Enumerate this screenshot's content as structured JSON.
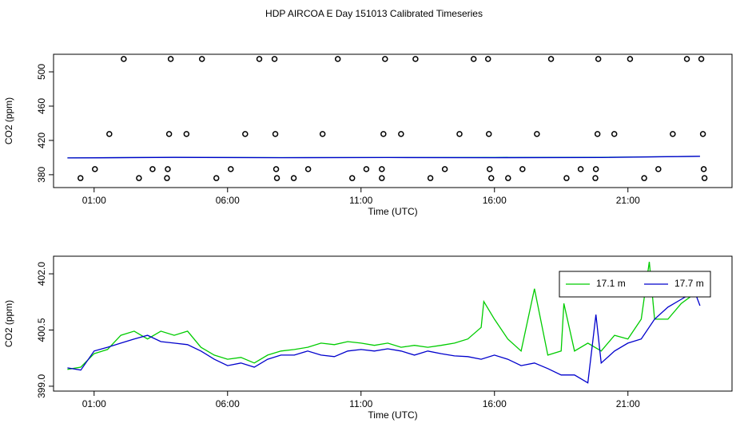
{
  "chart_data": [
    {
      "type": "line",
      "title": "HDP AIRCOA E  Day 151013  Calibrated Timeseries",
      "x_label": "Time (UTC)",
      "y_label": "CO2 (ppm)",
      "xlim": [
        -0.52,
        24.9
      ],
      "ylim": [
        365,
        520.5
      ],
      "xticks": [
        {
          "value": 1,
          "label": "01:00"
        },
        {
          "value": 6,
          "label": "06:00"
        },
        {
          "value": 11,
          "label": "11:00"
        },
        {
          "value": 16,
          "label": "16:00"
        },
        {
          "value": 21,
          "label": "21:00"
        }
      ],
      "yticks": [
        380,
        420,
        460,
        500
      ],
      "series": [
        {
          "type": "scatter",
          "color": "#000000",
          "x": [
            2.11,
            3.87,
            5.04,
            7.19,
            7.76,
            10.13,
            11.9,
            13.04,
            15.22,
            15.76,
            18.12,
            19.89,
            21.08,
            23.21,
            23.75,
            1.57,
            3.81,
            4.46,
            6.66,
            7.79,
            9.56,
            11.84,
            12.5,
            14.69,
            15.79,
            17.59,
            19.86,
            20.49,
            22.68,
            23.81,
            1.03,
            3.19,
            3.76,
            6.12,
            7.82,
            9.02,
            11.2,
            11.78,
            14.14,
            15.82,
            17.05,
            19.23,
            19.8,
            22.14,
            23.84,
            0.49,
            2.68,
            3.73,
            5.58,
            7.85,
            8.48,
            10.67,
            11.78,
            13.6,
            15.88,
            16.51,
            18.7,
            19.78,
            21.61,
            23.87
          ],
          "values": [
            515,
            515,
            515,
            515,
            515,
            515,
            515,
            515,
            515,
            515,
            515,
            515,
            515,
            515,
            515,
            427.5,
            427.5,
            427.5,
            427.5,
            427.5,
            427.5,
            427.5,
            427.5,
            427.5,
            427.5,
            427.5,
            427.5,
            427.5,
            427.5,
            427.5,
            386.5,
            386.5,
            386.5,
            386.5,
            386.5,
            386.5,
            386.5,
            386.5,
            386.5,
            386.5,
            386.5,
            386.5,
            386.5,
            386.5,
            386.5,
            376,
            376,
            376,
            376,
            376,
            376,
            376,
            376,
            376,
            376,
            376,
            376,
            376,
            376,
            376
          ]
        },
        {
          "type": "line",
          "color": "#20a0a0",
          "x": [
            0,
            4,
            8,
            12,
            16,
            20,
            23.7
          ],
          "values": [
            399.6,
            400.4,
            400,
            400.1,
            400.3,
            400.4,
            401.4
          ]
        },
        {
          "type": "line",
          "color": "#0000cc",
          "x": [
            0,
            4,
            8,
            12,
            16,
            20,
            23.7
          ],
          "values": [
            399.5,
            400.2,
            399.8,
            400,
            399.8,
            400,
            401.5
          ]
        }
      ]
    },
    {
      "type": "line",
      "x_label": "Time (UTC)",
      "y_label": "CO2 (ppm)",
      "xlim": [
        -0.52,
        24.9
      ],
      "ylim": [
        398.87,
        402.47
      ],
      "xticks": [
        {
          "value": 1,
          "label": "01:00"
        },
        {
          "value": 6,
          "label": "06:00"
        },
        {
          "value": 11,
          "label": "11:00"
        },
        {
          "value": 16,
          "label": "16:00"
        },
        {
          "value": 21,
          "label": "21:00"
        }
      ],
      "yticks": [
        {
          "value": 399,
          "label": "399.0"
        },
        400.5,
        {
          "value": 402,
          "label": "402.0"
        }
      ],
      "legend": "top-right",
      "series": [
        {
          "name": "17.1 m",
          "color": "#00cc00",
          "type": "line",
          "x": [
            0,
            0.5,
            1,
            1.5,
            2,
            2.5,
            3,
            3.5,
            4,
            4.5,
            5,
            5.5,
            6,
            6.5,
            7,
            7.5,
            8,
            8.5,
            9,
            9.5,
            10,
            10.5,
            11,
            11.5,
            12,
            12.5,
            13,
            13.5,
            14,
            14.5,
            15,
            15.5,
            15.6,
            16,
            16.5,
            17,
            17.5,
            18,
            18.5,
            18.6,
            19,
            19.5,
            20,
            20.5,
            21,
            21.5,
            21.8,
            22,
            22.5,
            23,
            23.5,
            23.7
          ],
          "values": [
            399.45,
            399.51,
            399.87,
            399.98,
            400.36,
            400.47,
            400.26,
            400.47,
            400.36,
            400.47,
            400.04,
            399.83,
            399.72,
            399.77,
            399.62,
            399.83,
            399.94,
            399.98,
            400.04,
            400.15,
            400.11,
            400.19,
            400.15,
            400.09,
            400.15,
            400.04,
            400.09,
            400.04,
            400.09,
            400.15,
            400.26,
            400.57,
            401.26,
            400.79,
            400.26,
            399.94,
            401.6,
            399.83,
            399.94,
            401.21,
            399.94,
            400.15,
            399.94,
            400.36,
            400.26,
            400.79,
            402.32,
            400.79,
            400.79,
            401.21,
            401.47,
            401.74
          ]
        },
        {
          "name": "17.7 m",
          "color": "#0000cc",
          "type": "line",
          "x": [
            0,
            0.5,
            1,
            1.5,
            2,
            2.5,
            3,
            3.5,
            4,
            4.5,
            5,
            5.5,
            6,
            6.5,
            7,
            7.5,
            8,
            8.5,
            9,
            9.5,
            10,
            10.5,
            11,
            11.5,
            12,
            12.5,
            13,
            13.5,
            14,
            14.5,
            15,
            15.5,
            16,
            16.5,
            17,
            17.5,
            18,
            18.5,
            19,
            19.5,
            19.8,
            20,
            20.5,
            21,
            21.5,
            22,
            22.5,
            23,
            23.5,
            23.7
          ],
          "values": [
            399.49,
            399.43,
            399.94,
            400.04,
            400.15,
            400.26,
            400.36,
            400.19,
            400.15,
            400.11,
            399.94,
            399.72,
            399.55,
            399.62,
            399.51,
            399.72,
            399.83,
            399.83,
            399.94,
            399.83,
            399.79,
            399.94,
            399.98,
            399.94,
            400,
            399.94,
            399.83,
            399.94,
            399.87,
            399.81,
            399.79,
            399.72,
            399.83,
            399.72,
            399.55,
            399.62,
            399.47,
            399.3,
            399.3,
            399.09,
            400.91,
            399.62,
            399.94,
            400.15,
            400.26,
            400.79,
            401.11,
            401.32,
            401.53,
            401.15
          ]
        }
      ]
    }
  ]
}
